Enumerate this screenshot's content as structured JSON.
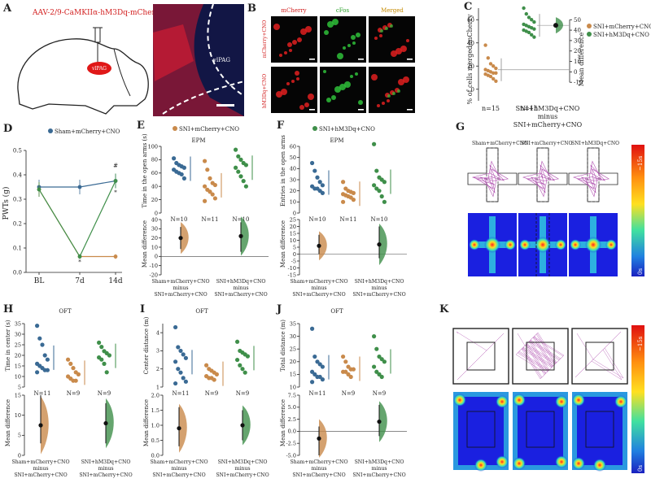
{
  "panel_letters": [
    "A",
    "B",
    "C",
    "D",
    "E",
    "F",
    "G",
    "H",
    "I",
    "J",
    "K"
  ],
  "colors": {
    "sham": "#3a6a94",
    "sni_mcherry": "#c98a4b",
    "sni_hm3dq": "#3f8f4a",
    "red_stain": "#e02020",
    "green_stain": "#2fbf3a",
    "blue_stain": "#2030a0",
    "track": "#b050b0",
    "heat_bg": "#1a20e0"
  },
  "icons": [
    "mouse-brain-outline-icon",
    "syringe-icon",
    "heat-scale-bar-icon"
  ],
  "panel_a": {
    "virus_label": "AAV-2/9-CaMKIIα-hM3Dq-mCherry",
    "region_label": "vlPAG",
    "histology_label": "vlPAG"
  },
  "panel_b": {
    "col_labels": [
      "mCherry",
      "cFos",
      "Merged"
    ],
    "row_labels": [
      "mCherry+CNO",
      "hM3Dq+CNO"
    ]
  },
  "panel_c": {
    "ylabel": "% of cells merged/mCherry",
    "ylabel_right": "Mean difference",
    "left_ticks": [
      "60",
      "40",
      "20",
      "0"
    ],
    "right_ticks": [
      "50",
      "40",
      "30",
      "20",
      "10",
      "0",
      "-10"
    ],
    "n1": "n=15",
    "n2": "n=15",
    "comparison": [
      "SNI+hM3Dq+CNO",
      "minus",
      "SNI+mCherry+CNO"
    ],
    "legend": [
      "SNI+mCherry+CNO",
      "SNI+hM3Dq+CNO"
    ]
  },
  "panel_d": {
    "legend": "Sham+mCherry+CNO",
    "ylabel": "PWTs (g)",
    "y_ticks": [
      "0.5",
      "0.4",
      "0.3",
      "0.2",
      "0.1",
      "0.0"
    ],
    "x_ticks": [
      "BL",
      "7d",
      "14d"
    ],
    "marks": [
      "#",
      "*",
      "*"
    ]
  },
  "panel_e": {
    "legend": "SNI+mCherry+CNO",
    "subtitle": "EPM",
    "ylabel": "Time in the open arms (s)",
    "ylabel2": "Mean difference",
    "top_ticks": [
      "100",
      "80",
      "60",
      "40",
      "20",
      "0"
    ],
    "bottom_ticks": [
      "40",
      "30",
      "20",
      "10",
      "0",
      "-10",
      "-20"
    ],
    "n_labels": [
      "N=10",
      "N=11",
      "N=10"
    ],
    "comparisons": [
      [
        "Sham+mCherry+CNO",
        "minus",
        "SNI+mCherry+CNO"
      ],
      [
        "SNI+hM3Dq+CNO",
        "minus",
        "SNI+mCherry+CNO"
      ]
    ]
  },
  "panel_f": {
    "legend": "SNI+hM3Dq+CNO",
    "subtitle": "EPM",
    "ylabel": "Entries in the open arms",
    "ylabel2": "Mean difference",
    "top_ticks": [
      "60",
      "50",
      "40",
      "30",
      "20",
      "10",
      "0"
    ],
    "bottom_ticks": [
      "25",
      "20",
      "15",
      "10",
      "5",
      "0",
      "-5",
      "-10",
      "-15"
    ],
    "n_labels": [
      "N=10",
      "N=11",
      "N=10"
    ],
    "comparisons": [
      [
        "Sham+mCherry+CNO",
        "minus",
        "SNI+mCherry+CNO"
      ],
      [
        "SNI+hM3Dq+CNO",
        "minus",
        "SNI+mCherry+CNO"
      ]
    ]
  },
  "panel_g": {
    "col_labels": [
      "Sham+mCherry+CNO",
      "SNI+mCherry+CNO",
      "SNI+hM3Dq+CNO"
    ],
    "scale_top": "~15s",
    "scale_bottom": "0s"
  },
  "panel_h": {
    "subtitle": "OFT",
    "ylabel": "Time in center (s)",
    "ylabel2": "Mean difference",
    "top_ticks": [
      "35",
      "30",
      "25",
      "20",
      "15",
      "10",
      "5"
    ],
    "bottom_ticks": [
      "15",
      "10",
      "5",
      "0"
    ],
    "n_labels": [
      "N=11",
      "N=9",
      "N=9"
    ],
    "comparisons": [
      [
        "Sham+mCherry+CNO",
        "minus",
        "SNI+mCherry+CNO"
      ],
      [
        "SNI+hM3Dq+CNO",
        "minus",
        "SNI+mCherry+CNO"
      ]
    ]
  },
  "panel_i": {
    "subtitle": "OFT",
    "ylabel": "Center distance (m)",
    "ylabel2": "Mean difference",
    "top_ticks": [
      "4",
      "3",
      "2",
      "1"
    ],
    "bottom_ticks": [
      "2.0",
      "1.5",
      "1.0",
      "0.5",
      "0.0"
    ],
    "n_labels": [
      "N=11",
      "N=9",
      "N=9"
    ],
    "comparisons": [
      [
        "Sham+mCherry+CNO",
        "minus",
        "SNI+mCherry+CNO"
      ],
      [
        "SNI+hM3Dq+CNO",
        "minus",
        "SNI+mCherry+CNO"
      ]
    ]
  },
  "panel_j": {
    "subtitle": "OFT",
    "ylabel": "Total distance (m)",
    "ylabel2": "Mean difference",
    "top_ticks": [
      "35",
      "30",
      "25",
      "20",
      "15",
      "10"
    ],
    "bottom_ticks": [
      "7.5",
      "5.0",
      "2.5",
      "0.0",
      "-2.5",
      "-5.0"
    ],
    "n_labels": [
      "N=11",
      "N=9",
      "N=9"
    ],
    "comparisons": [
      [
        "Sham+mCherry+CNO",
        "minus",
        "SNI+mCherry+CNO"
      ],
      [
        "SNI+hM3Dq+CNO",
        "minus",
        "SNI+mCherry+CNO"
      ]
    ]
  },
  "panel_k": {
    "scale_top": "~15s",
    "scale_bottom": "0s"
  },
  "chart_data": [
    {
      "id": "C",
      "type": "scatter",
      "ylim": [
        -10,
        70
      ],
      "groups": [
        {
          "series": "SNI+mCherry+CNO",
          "values": [
            38,
            27,
            22,
            20,
            18,
            17,
            16,
            15,
            14,
            14,
            13,
            12,
            11,
            9,
            7
          ]
        },
        {
          "series": "SNI+hM3Dq+CNO",
          "values": [
            70,
            65,
            62,
            60,
            58,
            56,
            55,
            54,
            53,
            52,
            51,
            50,
            49,
            47,
            45
          ]
        }
      ],
      "diff": {
        "mean": 38,
        "ci": [
          30,
          45
        ],
        "ylim": [
          -10,
          50
        ]
      }
    },
    {
      "id": "D",
      "type": "line",
      "categories": [
        "BL",
        "7d",
        "14d"
      ],
      "ylim": [
        0,
        0.5
      ],
      "series": [
        {
          "name": "Sham+mCherry+CNO",
          "values": [
            0.35,
            0.35,
            0.375
          ],
          "err": [
            0.03,
            0.03,
            0.03
          ]
        },
        {
          "name": "SNI+mCherry+CNO",
          "values": [
            0.34,
            0.065,
            0.065
          ],
          "err": [
            0.03,
            0.01,
            0.01
          ]
        },
        {
          "name": "SNI+hM3Dq+CNO",
          "values": [
            0.34,
            0.065,
            0.375
          ],
          "err": [
            0.03,
            0.01,
            0.03
          ]
        }
      ]
    },
    {
      "id": "E",
      "type": "scatter",
      "ylim": [
        0,
        100
      ],
      "groups": [
        {
          "series": "Sham+mCherry+CNO",
          "values": [
            82,
            75,
            72,
            70,
            68,
            65,
            62,
            60,
            58,
            52
          ]
        },
        {
          "series": "SNI+mCherry+CNO",
          "values": [
            78,
            65,
            52,
            45,
            42,
            40,
            35,
            32,
            28,
            22,
            18
          ]
        },
        {
          "series": "SNI+hM3Dq+CNO",
          "values": [
            95,
            85,
            80,
            75,
            72,
            68,
            62,
            55,
            48,
            40
          ]
        }
      ],
      "diffs": [
        {
          "mean": 20,
          "ci": [
            8,
            32
          ]
        },
        {
          "mean": 22,
          "ci": [
            5,
            37
          ]
        }
      ],
      "diff_ylim": [
        -20,
        40
      ]
    },
    {
      "id": "F",
      "type": "scatter",
      "ylim": [
        0,
        60
      ],
      "groups": [
        {
          "series": "Sham+mCherry+CNO",
          "values": [
            45,
            38,
            32,
            28,
            25,
            24,
            22,
            22,
            20,
            18
          ]
        },
        {
          "series": "SNI+mCherry+CNO",
          "values": [
            28,
            22,
            20,
            19,
            18,
            17,
            16,
            15,
            14,
            12,
            10
          ]
        },
        {
          "series": "SNI+hM3Dq+CNO",
          "values": [
            62,
            38,
            32,
            30,
            28,
            25,
            22,
            20,
            15,
            10
          ]
        }
      ],
      "diffs": [
        {
          "mean": 6,
          "ci": [
            0,
            14
          ]
        },
        {
          "mean": 7,
          "ci": [
            -3,
            20
          ]
        }
      ],
      "diff_ylim": [
        -15,
        25
      ]
    },
    {
      "id": "H",
      "type": "scatter",
      "ylim": [
        5,
        35
      ],
      "groups": [
        {
          "series": "Sham+mCherry+CNO",
          "values": [
            34,
            28,
            25,
            20,
            18,
            16,
            15,
            14,
            13,
            13,
            12
          ]
        },
        {
          "series": "SNI+mCherry+CNO",
          "values": [
            18,
            16,
            14,
            12,
            11,
            10,
            9,
            8,
            8
          ]
        },
        {
          "series": "SNI+hM3Dq+CNO",
          "values": [
            26,
            24,
            22,
            21,
            20,
            19,
            18,
            16,
            12
          ]
        }
      ],
      "diffs": [
        {
          "mean": 7.5,
          "ci": [
            3,
            15
          ]
        },
        {
          "mean": 8,
          "ci": [
            3,
            13
          ]
        }
      ],
      "diff_ylim": [
        0,
        15
      ]
    },
    {
      "id": "I",
      "type": "scatter",
      "ylim": [
        1,
        4.5
      ],
      "groups": [
        {
          "series": "Sham+mCherry+CNO",
          "values": [
            4.3,
            3.2,
            3.0,
            2.8,
            2.6,
            2.4,
            2.0,
            1.8,
            1.5,
            1.3,
            1.2
          ]
        },
        {
          "series": "SNI+mCherry+CNO",
          "values": [
            2.2,
            2.0,
            1.9,
            1.8,
            1.7,
            1.6,
            1.5,
            1.5,
            1.4
          ]
        },
        {
          "series": "SNI+hM3Dq+CNO",
          "values": [
            3.5,
            3.0,
            2.9,
            2.8,
            2.7,
            2.5,
            2.2,
            2.0,
            1.8
          ]
        }
      ],
      "diffs": [
        {
          "mean": 0.9,
          "ci": [
            0.3,
            1.6
          ]
        },
        {
          "mean": 1.0,
          "ci": [
            0.5,
            1.5
          ]
        }
      ],
      "diff_ylim": [
        0,
        2
      ]
    },
    {
      "id": "J",
      "type": "scatter",
      "ylim": [
        10,
        35
      ],
      "groups": [
        {
          "series": "Sham+mCherry+CNO",
          "values": [
            33,
            22,
            20,
            19,
            18,
            16,
            15,
            14,
            14,
            13,
            12
          ]
        },
        {
          "series": "SNI+mCherry+CNO",
          "values": [
            22,
            20,
            18,
            17,
            17,
            16,
            16,
            15,
            14
          ]
        },
        {
          "series": "SNI+hM3Dq+CNO",
          "values": [
            30,
            25,
            22,
            21,
            20,
            18,
            16,
            15,
            14
          ]
        }
      ],
      "diffs": [
        {
          "mean": -1.5,
          "ci": [
            -5,
            1
          ]
        },
        {
          "mean": 2.0,
          "ci": [
            -1,
            5.5
          ]
        }
      ],
      "diff_ylim": [
        -5,
        7.5
      ]
    }
  ]
}
